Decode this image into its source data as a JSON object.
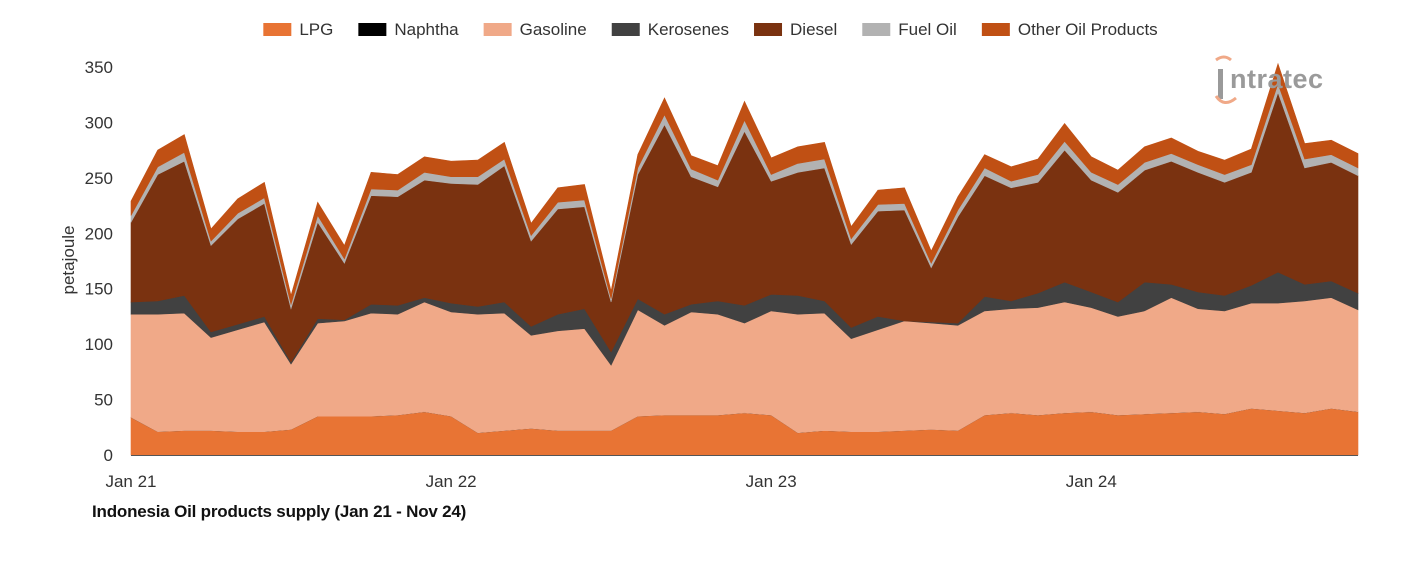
{
  "chart_data": {
    "type": "area",
    "stacked": true,
    "ylabel": "petajoule",
    "ylim": [
      0,
      350
    ],
    "yticks": [
      0,
      50,
      100,
      150,
      200,
      250,
      300,
      350
    ],
    "xtick_labels": [
      "Jan 21",
      "Jan 22",
      "Jan 23",
      "Jan 24"
    ],
    "x": [
      "2021-01",
      "2021-02",
      "2021-03",
      "2021-04",
      "2021-05",
      "2021-06",
      "2021-07",
      "2021-08",
      "2021-09",
      "2021-10",
      "2021-11",
      "2021-12",
      "2022-01",
      "2022-02",
      "2022-03",
      "2022-04",
      "2022-05",
      "2022-06",
      "2022-07",
      "2022-08",
      "2022-09",
      "2022-10",
      "2022-11",
      "2022-12",
      "2023-01",
      "2023-02",
      "2023-03",
      "2023-04",
      "2023-05",
      "2023-06",
      "2023-07",
      "2023-08",
      "2023-09",
      "2023-10",
      "2023-11",
      "2023-12",
      "2024-01",
      "2024-02",
      "2024-03",
      "2024-04",
      "2024-05",
      "2024-06",
      "2024-07",
      "2024-08",
      "2024-09",
      "2024-10",
      "2024-11"
    ],
    "grid": false,
    "legend_position": "top",
    "series": [
      {
        "name": "LPG",
        "color": "#e87434",
        "values": [
          34,
          21,
          22,
          22,
          21,
          21,
          23,
          35,
          35,
          35,
          36,
          39,
          35,
          20,
          22,
          24,
          22,
          22,
          22,
          35,
          36,
          36,
          36,
          38,
          36,
          20,
          22,
          21,
          21,
          22,
          23,
          22,
          36,
          38,
          36,
          38,
          39,
          36,
          37,
          38,
          39,
          37,
          42,
          40,
          38,
          42,
          39
        ]
      },
      {
        "name": "Naphtha",
        "color": "#000000",
        "values": [
          0,
          0,
          0,
          0,
          0,
          0,
          0,
          0,
          0,
          0,
          0,
          0,
          0,
          0,
          0,
          0,
          0,
          0,
          0,
          0,
          0,
          0,
          0,
          0,
          0,
          0,
          0,
          0,
          0,
          0,
          0,
          0,
          0,
          0,
          0,
          0,
          0,
          0,
          0,
          0,
          0,
          0,
          0,
          0,
          0,
          0,
          0
        ]
      },
      {
        "name": "Gasoline",
        "color": "#f0a988",
        "values": [
          93,
          106,
          106,
          84,
          92,
          99,
          59,
          84,
          86,
          93,
          91,
          99,
          94,
          107,
          106,
          84,
          90,
          92,
          59,
          96,
          81,
          93,
          91,
          81,
          94,
          107,
          106,
          84,
          92,
          99,
          96,
          95,
          94,
          94,
          97,
          100,
          94,
          89,
          93,
          104,
          93,
          93,
          95,
          97,
          101,
          100,
          92
        ]
      },
      {
        "name": "Kerosenes",
        "color": "#414141",
        "values": [
          11,
          12,
          16,
          5,
          5,
          5,
          2,
          4,
          1,
          8,
          8,
          4,
          8,
          7,
          10,
          8,
          15,
          18,
          12,
          10,
          10,
          7,
          12,
          16,
          15,
          17,
          11,
          10,
          12,
          0,
          1,
          2,
          13,
          7,
          13,
          18,
          14,
          13,
          26,
          12,
          15,
          14,
          16,
          28,
          15,
          15,
          15
        ]
      },
      {
        "name": "Diesel",
        "color": "#7a3210",
        "values": [
          72,
          114,
          121,
          78,
          95,
          102,
          48,
          87,
          51,
          98,
          98,
          106,
          108,
          110,
          123,
          77,
          95,
          92,
          45,
          112,
          171,
          115,
          103,
          157,
          102,
          111,
          120,
          75,
          95,
          100,
          49,
          96,
          109,
          102,
          100,
          119,
          101,
          99,
          101,
          111,
          108,
          102,
          102,
          162,
          105,
          107,
          106
        ]
      },
      {
        "name": "Fuel Oil",
        "color": "#b2b2b2",
        "values": [
          6,
          7,
          8,
          4,
          5,
          5,
          4,
          6,
          4,
          6,
          6,
          7,
          6,
          7,
          6,
          5,
          6,
          6,
          3,
          6,
          9,
          7,
          6,
          10,
          6,
          8,
          8,
          5,
          6,
          6,
          4,
          6,
          7,
          6,
          7,
          8,
          7,
          7,
          7,
          7,
          7,
          7,
          7,
          8,
          8,
          7,
          7
        ]
      },
      {
        "name": "Other Oil Products",
        "color": "#c05014",
        "values": [
          13,
          15,
          16,
          11,
          13,
          14,
          8,
          12,
          12,
          15,
          14,
          14,
          14,
          15,
          15,
          11,
          13,
          14,
          7,
          12,
          15,
          12,
          13,
          17,
          15,
          15,
          15,
          11,
          13,
          14,
          11,
          12,
          12,
          13,
          14,
          16,
          14,
          13,
          14,
          14,
          12,
          13,
          14,
          18,
          14,
          13,
          13
        ]
      }
    ]
  },
  "caption": "Indonesia Oil products supply (Jan 21 - Nov 24)",
  "logo": {
    "text": "ntratec",
    "mark": "i",
    "color": "#9a9a9a",
    "accent": "#f0a988"
  }
}
